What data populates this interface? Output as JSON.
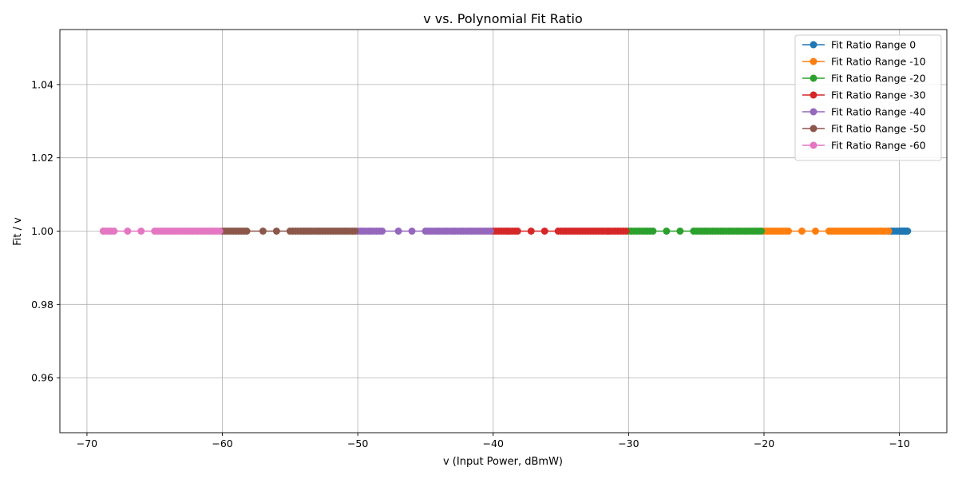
{
  "chart_data": {
    "type": "line",
    "title": "v vs. Polynomial Fit Ratio",
    "xlabel": "v (Input Power, dBmW)",
    "ylabel": "Fit / v",
    "xlim": [
      -72,
      -6.5
    ],
    "ylim": [
      0.945,
      1.055
    ],
    "xticks": [
      -70,
      -60,
      -50,
      -40,
      -30,
      -20,
      -10
    ],
    "yticks": [
      0.96,
      0.98,
      1.0,
      1.02,
      1.04
    ],
    "xtick_labels": [
      "−70",
      "−60",
      "−50",
      "−40",
      "−30",
      "−20",
      "−10"
    ],
    "ytick_labels": [
      "0.96",
      "0.98",
      "1.00",
      "1.02",
      "1.04"
    ],
    "grid": true,
    "legend_position": "top-right",
    "series": [
      {
        "name": "Fit Ratio Range 0",
        "color": "#1f77b4",
        "x": [
          -10.8,
          -10.6,
          -10.4,
          -10.2,
          -10.0,
          -9.9,
          -9.8,
          -9.7,
          -9.6,
          -9.5,
          -9.4
        ],
        "y": [
          1.0,
          1.0,
          1.0,
          1.0,
          1.0,
          1.0,
          1.0,
          1.0,
          1.0,
          1.0,
          1.0
        ]
      },
      {
        "name": "Fit Ratio Range -10",
        "color": "#ff7f0e",
        "x": [
          -20.0,
          -19.8,
          -19.6,
          -19.4,
          -19.2,
          -19.0,
          -18.8,
          -18.6,
          -18.4,
          -18.2,
          -17.2,
          -16.2,
          -15.2,
          -15.0,
          -14.8,
          -14.6,
          -14.4,
          -14.2,
          -14.0,
          -13.8,
          -13.6,
          -13.4,
          -13.2,
          -13.0,
          -12.8,
          -12.6,
          -12.4,
          -12.2,
          -12.0,
          -11.8,
          -11.6,
          -11.4,
          -11.2,
          -11.0,
          -10.8
        ],
        "y": [
          1.0,
          1.0,
          1.0,
          1.0,
          1.0,
          1.0,
          1.0,
          1.0,
          1.0,
          1.0,
          1.0,
          1.0,
          1.0,
          1.0,
          1.0,
          1.0,
          1.0,
          1.0,
          1.0,
          1.0,
          1.0,
          1.0,
          1.0,
          1.0,
          1.0,
          1.0,
          1.0,
          1.0,
          1.0,
          1.0,
          1.0,
          1.0,
          1.0,
          1.0,
          1.0
        ]
      },
      {
        "name": "Fit Ratio Range -20",
        "color": "#2ca02c",
        "x": [
          -30.0,
          -29.8,
          -29.6,
          -29.4,
          -29.2,
          -29.0,
          -28.8,
          -28.6,
          -28.4,
          -28.2,
          -27.2,
          -26.2,
          -25.2,
          -25.0,
          -24.8,
          -24.6,
          -24.4,
          -24.2,
          -24.0,
          -23.8,
          -23.6,
          -23.4,
          -23.2,
          -23.0,
          -22.8,
          -22.6,
          -22.4,
          -22.2,
          -22.0,
          -21.8,
          -21.6,
          -21.4,
          -21.2,
          -21.0,
          -20.8,
          -20.6,
          -20.4,
          -20.2
        ],
        "y": [
          1.0,
          1.0,
          1.0,
          1.0,
          1.0,
          1.0,
          1.0,
          1.0,
          1.0,
          1.0,
          1.0,
          1.0,
          1.0,
          1.0,
          1.0,
          1.0,
          1.0,
          1.0,
          1.0,
          1.0,
          1.0,
          1.0,
          1.0,
          1.0,
          1.0,
          1.0,
          1.0,
          1.0,
          1.0,
          1.0,
          1.0,
          1.0,
          1.0,
          1.0,
          1.0,
          1.0,
          1.0,
          1.0
        ]
      },
      {
        "name": "Fit Ratio Range -30",
        "color": "#d62728",
        "x": [
          -40.0,
          -39.8,
          -39.6,
          -39.4,
          -39.2,
          -39.0,
          -38.8,
          -38.6,
          -38.4,
          -38.2,
          -37.2,
          -36.2,
          -35.2,
          -35.0,
          -34.8,
          -34.6,
          -34.4,
          -34.2,
          -34.0,
          -33.8,
          -33.6,
          -33.4,
          -33.2,
          -33.0,
          -32.8,
          -32.6,
          -32.4,
          -32.2,
          -32.0,
          -31.8,
          -31.6,
          -31.4,
          -31.2,
          -31.0,
          -30.8,
          -30.6,
          -30.4,
          -30.2
        ],
        "y": [
          1.0,
          1.0,
          1.0,
          1.0,
          1.0,
          1.0,
          1.0,
          1.0,
          1.0,
          1.0,
          1.0,
          1.0,
          1.0,
          1.0,
          1.0,
          1.0,
          1.0,
          1.0,
          1.0,
          1.0,
          1.0,
          1.0,
          1.0,
          1.0,
          1.0,
          1.0,
          1.0,
          1.0,
          1.0,
          1.0,
          1.0,
          1.0,
          1.0,
          1.0,
          1.0,
          1.0,
          1.0,
          1.0
        ]
      },
      {
        "name": "Fit Ratio Range -40",
        "color": "#9467bd",
        "x": [
          -50.0,
          -49.8,
          -49.6,
          -49.4,
          -49.2,
          -49.0,
          -48.8,
          -48.6,
          -48.4,
          -48.2,
          -47.0,
          -46.0,
          -45.0,
          -44.8,
          -44.6,
          -44.4,
          -44.2,
          -44.0,
          -43.8,
          -43.6,
          -43.4,
          -43.2,
          -43.0,
          -42.8,
          -42.6,
          -42.4,
          -42.2,
          -42.0,
          -41.8,
          -41.6,
          -41.4,
          -41.2,
          -41.0,
          -40.8,
          -40.6,
          -40.4,
          -40.2
        ],
        "y": [
          1.0,
          1.0,
          1.0,
          1.0,
          1.0,
          1.0,
          1.0,
          1.0,
          1.0,
          1.0,
          1.0,
          1.0,
          1.0,
          1.0,
          1.0,
          1.0,
          1.0,
          1.0,
          1.0,
          1.0,
          1.0,
          1.0,
          1.0,
          1.0,
          1.0,
          1.0,
          1.0,
          1.0,
          1.0,
          1.0,
          1.0,
          1.0,
          1.0,
          1.0,
          1.0,
          1.0,
          1.0
        ]
      },
      {
        "name": "Fit Ratio Range -50",
        "color": "#8c564b",
        "x": [
          -60.0,
          -59.8,
          -59.6,
          -59.4,
          -59.2,
          -59.0,
          -58.8,
          -58.6,
          -58.4,
          -58.2,
          -57.0,
          -56.0,
          -55.0,
          -54.8,
          -54.6,
          -54.4,
          -54.2,
          -54.0,
          -53.8,
          -53.6,
          -53.4,
          -53.2,
          -53.0,
          -52.8,
          -52.6,
          -52.4,
          -52.2,
          -52.0,
          -51.8,
          -51.6,
          -51.4,
          -51.2,
          -51.0,
          -50.8,
          -50.6,
          -50.4,
          -50.2
        ],
        "y": [
          1.0,
          1.0,
          1.0,
          1.0,
          1.0,
          1.0,
          1.0,
          1.0,
          1.0,
          1.0,
          1.0,
          1.0,
          1.0,
          1.0,
          1.0,
          1.0,
          1.0,
          1.0,
          1.0,
          1.0,
          1.0,
          1.0,
          1.0,
          1.0,
          1.0,
          1.0,
          1.0,
          1.0,
          1.0,
          1.0,
          1.0,
          1.0,
          1.0,
          1.0,
          1.0,
          1.0,
          1.0
        ]
      },
      {
        "name": "Fit Ratio Range -60",
        "color": "#e377c2",
        "x": [
          -68.8,
          -68.6,
          -68.4,
          -68.2,
          -68.0,
          -67.0,
          -66.0,
          -65.0,
          -64.8,
          -64.6,
          -64.4,
          -64.2,
          -64.0,
          -63.8,
          -63.6,
          -63.4,
          -63.2,
          -63.0,
          -62.8,
          -62.6,
          -62.4,
          -62.2,
          -62.0,
          -61.8,
          -61.6,
          -61.4,
          -61.2,
          -61.0,
          -60.8,
          -60.6,
          -60.4,
          -60.2
        ],
        "y": [
          1.0,
          1.0,
          1.0,
          1.0,
          1.0,
          1.0,
          1.0,
          1.0,
          1.0,
          1.0,
          1.0,
          1.0,
          1.0,
          1.0,
          1.0,
          1.0,
          1.0,
          1.0,
          1.0,
          1.0,
          1.0,
          1.0,
          1.0,
          1.0,
          1.0,
          1.0,
          1.0,
          1.0,
          1.0,
          1.0,
          1.0,
          1.0
        ]
      }
    ]
  }
}
